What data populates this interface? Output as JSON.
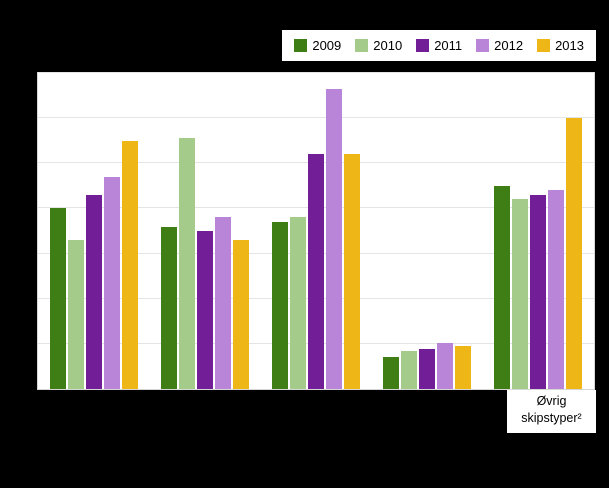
{
  "colors": {
    "page_background": "#000000",
    "plot_background": "#ffffff",
    "gridline": "#e4e4e4"
  },
  "legend": {
    "position": "top-right"
  },
  "chart_data": {
    "type": "bar",
    "title": "",
    "categories": [
      "",
      "",
      "",
      "",
      "Øvrig skipstyper²"
    ],
    "series": [
      {
        "name": "2009",
        "color": "#3e7e14",
        "values": [
          40,
          36,
          37,
          7,
          45
        ]
      },
      {
        "name": "2010",
        "color": "#a5cb8b",
        "values": [
          33,
          55.5,
          38,
          8.4,
          42
        ]
      },
      {
        "name": "2011",
        "color": "#721e96",
        "values": [
          43,
          35,
          52,
          8.8,
          43
        ]
      },
      {
        "name": "2012",
        "color": "#b885d8",
        "values": [
          47,
          38,
          66.5,
          10.1,
          44
        ]
      },
      {
        "name": "2013",
        "color": "#eeb617",
        "values": [
          55,
          33,
          52,
          9.5,
          60
        ]
      }
    ],
    "xlabel": "",
    "ylabel": "",
    "ylim": [
      0,
      70
    ],
    "grid_step": 10,
    "grid": true,
    "legend_position": "top-right"
  }
}
